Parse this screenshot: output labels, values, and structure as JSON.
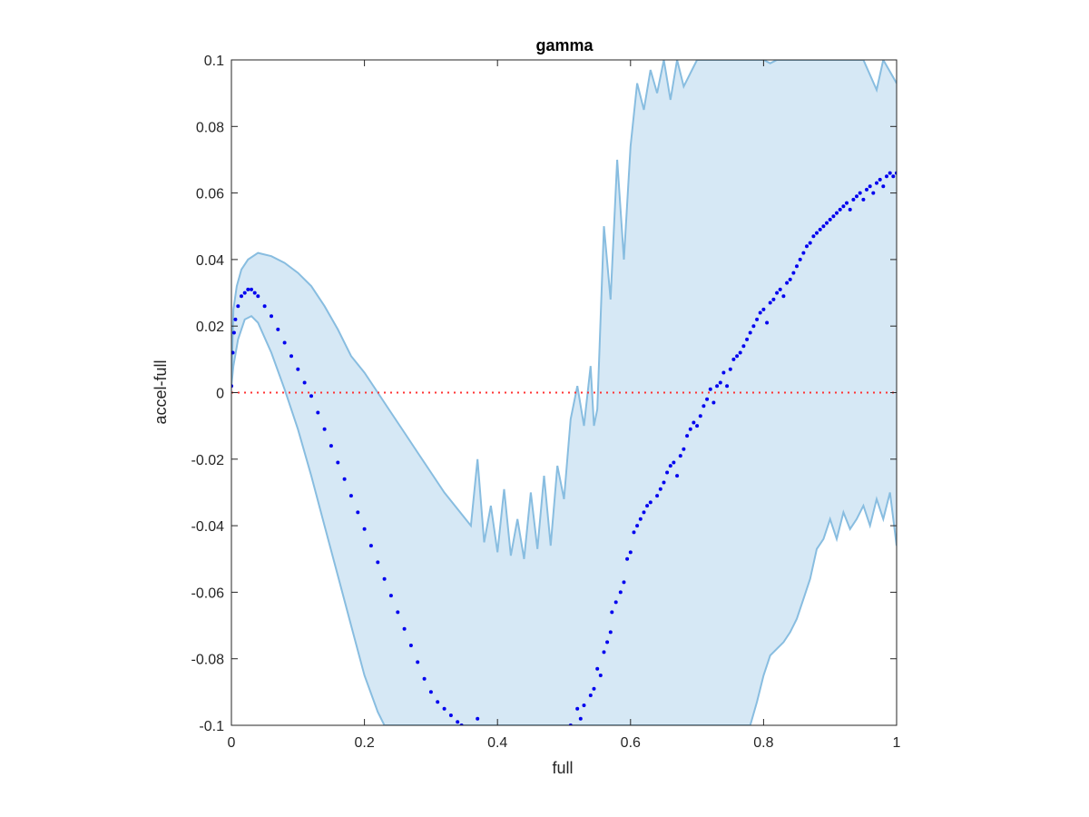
{
  "chart_data": {
    "type": "scatter",
    "title": "gamma",
    "xlabel": "full",
    "ylabel": "accel-full",
    "xlim": [
      0,
      1
    ],
    "ylim": [
      -0.1,
      0.1
    ],
    "xticks": [
      {
        "value": 0,
        "label": "0"
      },
      {
        "value": 0.2,
        "label": "0.2"
      },
      {
        "value": 0.4,
        "label": "0.4"
      },
      {
        "value": 0.6,
        "label": "0.6"
      },
      {
        "value": 0.8,
        "label": "0.8"
      },
      {
        "value": 1,
        "label": "1"
      }
    ],
    "yticks": [
      {
        "value": -0.1,
        "label": "-0.1"
      },
      {
        "value": -0.08,
        "label": "-0.08"
      },
      {
        "value": -0.06,
        "label": "-0.06"
      },
      {
        "value": -0.04,
        "label": "-0.04"
      },
      {
        "value": -0.02,
        "label": "-0.02"
      },
      {
        "value": 0,
        "label": "0"
      },
      {
        "value": 0.02,
        "label": "0.02"
      },
      {
        "value": 0.04,
        "label": "0.04"
      },
      {
        "value": 0.06,
        "label": "0.06"
      },
      {
        "value": 0.08,
        "label": "0.08"
      },
      {
        "value": 0.1,
        "label": "0.1"
      }
    ],
    "grid": false,
    "reference_line": {
      "y": 0,
      "style": "dotted",
      "color": "#ff3333"
    },
    "band": {
      "fill": "#d6e8f5",
      "edge": "#88bde0",
      "upper": [
        [
          0,
          0.002
        ],
        [
          0.003,
          0.025
        ],
        [
          0.008,
          0.032
        ],
        [
          0.015,
          0.037
        ],
        [
          0.025,
          0.04
        ],
        [
          0.04,
          0.042
        ],
        [
          0.06,
          0.041
        ],
        [
          0.08,
          0.039
        ],
        [
          0.1,
          0.036
        ],
        [
          0.12,
          0.032
        ],
        [
          0.14,
          0.026
        ],
        [
          0.16,
          0.019
        ],
        [
          0.18,
          0.011
        ],
        [
          0.2,
          0.006
        ],
        [
          0.22,
          0.0
        ],
        [
          0.24,
          -0.006
        ],
        [
          0.26,
          -0.012
        ],
        [
          0.28,
          -0.018
        ],
        [
          0.3,
          -0.024
        ],
        [
          0.32,
          -0.03
        ],
        [
          0.34,
          -0.035
        ],
        [
          0.36,
          -0.04
        ],
        [
          0.37,
          -0.02
        ],
        [
          0.38,
          -0.045
        ],
        [
          0.39,
          -0.034
        ],
        [
          0.4,
          -0.048
        ],
        [
          0.41,
          -0.029
        ],
        [
          0.42,
          -0.049
        ],
        [
          0.43,
          -0.038
        ],
        [
          0.44,
          -0.05
        ],
        [
          0.45,
          -0.03
        ],
        [
          0.46,
          -0.047
        ],
        [
          0.47,
          -0.025
        ],
        [
          0.48,
          -0.046
        ],
        [
          0.49,
          -0.022
        ],
        [
          0.5,
          -0.032
        ],
        [
          0.51,
          -0.008
        ],
        [
          0.52,
          0.002
        ],
        [
          0.53,
          -0.01
        ],
        [
          0.54,
          0.008
        ],
        [
          0.545,
          -0.01
        ],
        [
          0.55,
          -0.005
        ],
        [
          0.56,
          0.05
        ],
        [
          0.57,
          0.028
        ],
        [
          0.58,
          0.07
        ],
        [
          0.59,
          0.04
        ],
        [
          0.6,
          0.074
        ],
        [
          0.61,
          0.093
        ],
        [
          0.62,
          0.085
        ],
        [
          0.63,
          0.097
        ],
        [
          0.64,
          0.09
        ],
        [
          0.65,
          0.1
        ],
        [
          0.66,
          0.088
        ],
        [
          0.67,
          0.1
        ],
        [
          0.68,
          0.092
        ],
        [
          0.7,
          0.1
        ],
        [
          0.72,
          0.1
        ],
        [
          0.8,
          0.1
        ],
        [
          0.81,
          0.099
        ],
        [
          0.82,
          0.1
        ],
        [
          0.95,
          0.1
        ],
        [
          0.97,
          0.091
        ],
        [
          0.98,
          0.1
        ],
        [
          1.0,
          0.093
        ]
      ],
      "lower": [
        [
          0,
          0.002
        ],
        [
          0.003,
          0.008
        ],
        [
          0.01,
          0.016
        ],
        [
          0.02,
          0.022
        ],
        [
          0.03,
          0.023
        ],
        [
          0.04,
          0.021
        ],
        [
          0.06,
          0.012
        ],
        [
          0.08,
          0.001
        ],
        [
          0.1,
          -0.011
        ],
        [
          0.12,
          -0.025
        ],
        [
          0.14,
          -0.04
        ],
        [
          0.16,
          -0.055
        ],
        [
          0.18,
          -0.07
        ],
        [
          0.2,
          -0.085
        ],
        [
          0.22,
          -0.096
        ],
        [
          0.23,
          -0.1
        ],
        [
          0.78,
          -0.1
        ],
        [
          0.79,
          -0.093
        ],
        [
          0.8,
          -0.085
        ],
        [
          0.81,
          -0.079
        ],
        [
          0.82,
          -0.077
        ],
        [
          0.83,
          -0.075
        ],
        [
          0.84,
          -0.072
        ],
        [
          0.85,
          -0.068
        ],
        [
          0.86,
          -0.062
        ],
        [
          0.87,
          -0.056
        ],
        [
          0.88,
          -0.047
        ],
        [
          0.89,
          -0.044
        ],
        [
          0.9,
          -0.038
        ],
        [
          0.91,
          -0.044
        ],
        [
          0.92,
          -0.036
        ],
        [
          0.93,
          -0.041
        ],
        [
          0.94,
          -0.038
        ],
        [
          0.95,
          -0.034
        ],
        [
          0.96,
          -0.04
        ],
        [
          0.97,
          -0.032
        ],
        [
          0.98,
          -0.038
        ],
        [
          0.99,
          -0.03
        ],
        [
          1.0,
          -0.046
        ]
      ]
    },
    "series": [
      {
        "color": "#0000ee",
        "points": [
          [
            0.0,
            0.002
          ],
          [
            0.002,
            0.012
          ],
          [
            0.004,
            0.018
          ],
          [
            0.006,
            0.022
          ],
          [
            0.01,
            0.026
          ],
          [
            0.015,
            0.029
          ],
          [
            0.02,
            0.03
          ],
          [
            0.025,
            0.031
          ],
          [
            0.03,
            0.031
          ],
          [
            0.035,
            0.03
          ],
          [
            0.04,
            0.029
          ],
          [
            0.05,
            0.026
          ],
          [
            0.06,
            0.023
          ],
          [
            0.07,
            0.019
          ],
          [
            0.08,
            0.015
          ],
          [
            0.09,
            0.011
          ],
          [
            0.1,
            0.007
          ],
          [
            0.11,
            0.003
          ],
          [
            0.12,
            -0.001
          ],
          [
            0.13,
            -0.006
          ],
          [
            0.14,
            -0.011
          ],
          [
            0.15,
            -0.016
          ],
          [
            0.16,
            -0.021
          ],
          [
            0.17,
            -0.026
          ],
          [
            0.18,
            -0.031
          ],
          [
            0.19,
            -0.036
          ],
          [
            0.2,
            -0.041
          ],
          [
            0.21,
            -0.046
          ],
          [
            0.22,
            -0.051
          ],
          [
            0.23,
            -0.056
          ],
          [
            0.24,
            -0.061
          ],
          [
            0.25,
            -0.066
          ],
          [
            0.26,
            -0.071
          ],
          [
            0.27,
            -0.076
          ],
          [
            0.28,
            -0.081
          ],
          [
            0.29,
            -0.086
          ],
          [
            0.3,
            -0.09
          ],
          [
            0.31,
            -0.093
          ],
          [
            0.32,
            -0.095
          ],
          [
            0.33,
            -0.097
          ],
          [
            0.34,
            -0.099
          ],
          [
            0.346,
            -0.1
          ],
          [
            0.37,
            -0.098
          ],
          [
            0.51,
            -0.1
          ],
          [
            0.52,
            -0.095
          ],
          [
            0.525,
            -0.098
          ],
          [
            0.53,
            -0.094
          ],
          [
            0.54,
            -0.091
          ],
          [
            0.545,
            -0.089
          ],
          [
            0.55,
            -0.083
          ],
          [
            0.555,
            -0.085
          ],
          [
            0.56,
            -0.078
          ],
          [
            0.565,
            -0.075
          ],
          [
            0.57,
            -0.072
          ],
          [
            0.572,
            -0.066
          ],
          [
            0.578,
            -0.063
          ],
          [
            0.585,
            -0.06
          ],
          [
            0.59,
            -0.057
          ],
          [
            0.595,
            -0.05
          ],
          [
            0.6,
            -0.048
          ],
          [
            0.605,
            -0.042
          ],
          [
            0.61,
            -0.04
          ],
          [
            0.615,
            -0.038
          ],
          [
            0.62,
            -0.036
          ],
          [
            0.625,
            -0.034
          ],
          [
            0.63,
            -0.033
          ],
          [
            0.64,
            -0.031
          ],
          [
            0.645,
            -0.029
          ],
          [
            0.65,
            -0.027
          ],
          [
            0.655,
            -0.024
          ],
          [
            0.66,
            -0.022
          ],
          [
            0.665,
            -0.021
          ],
          [
            0.67,
            -0.025
          ],
          [
            0.675,
            -0.019
          ],
          [
            0.68,
            -0.017
          ],
          [
            0.685,
            -0.013
          ],
          [
            0.69,
            -0.011
          ],
          [
            0.695,
            -0.009
          ],
          [
            0.7,
            -0.01
          ],
          [
            0.705,
            -0.007
          ],
          [
            0.71,
            -0.004
          ],
          [
            0.715,
            -0.002
          ],
          [
            0.72,
            0.001
          ],
          [
            0.725,
            -0.003
          ],
          [
            0.73,
            0.002
          ],
          [
            0.735,
            0.003
          ],
          [
            0.74,
            0.006
          ],
          [
            0.745,
            0.002
          ],
          [
            0.75,
            0.007
          ],
          [
            0.755,
            0.01
          ],
          [
            0.76,
            0.011
          ],
          [
            0.765,
            0.012
          ],
          [
            0.77,
            0.014
          ],
          [
            0.775,
            0.016
          ],
          [
            0.78,
            0.018
          ],
          [
            0.785,
            0.02
          ],
          [
            0.79,
            0.022
          ],
          [
            0.795,
            0.024
          ],
          [
            0.8,
            0.025
          ],
          [
            0.805,
            0.021
          ],
          [
            0.81,
            0.027
          ],
          [
            0.815,
            0.028
          ],
          [
            0.82,
            0.03
          ],
          [
            0.825,
            0.031
          ],
          [
            0.83,
            0.029
          ],
          [
            0.835,
            0.033
          ],
          [
            0.84,
            0.034
          ],
          [
            0.845,
            0.036
          ],
          [
            0.85,
            0.038
          ],
          [
            0.855,
            0.04
          ],
          [
            0.86,
            0.042
          ],
          [
            0.865,
            0.044
          ],
          [
            0.87,
            0.045
          ],
          [
            0.875,
            0.047
          ],
          [
            0.88,
            0.048
          ],
          [
            0.885,
            0.049
          ],
          [
            0.89,
            0.05
          ],
          [
            0.895,
            0.051
          ],
          [
            0.9,
            0.052
          ],
          [
            0.905,
            0.053
          ],
          [
            0.91,
            0.054
          ],
          [
            0.915,
            0.055
          ],
          [
            0.92,
            0.056
          ],
          [
            0.925,
            0.057
          ],
          [
            0.93,
            0.055
          ],
          [
            0.935,
            0.058
          ],
          [
            0.94,
            0.059
          ],
          [
            0.945,
            0.06
          ],
          [
            0.95,
            0.058
          ],
          [
            0.955,
            0.061
          ],
          [
            0.96,
            0.062
          ],
          [
            0.965,
            0.06
          ],
          [
            0.97,
            0.063
          ],
          [
            0.975,
            0.064
          ],
          [
            0.98,
            0.062
          ],
          [
            0.985,
            0.065
          ],
          [
            0.99,
            0.066
          ],
          [
            0.995,
            0.065
          ],
          [
            1.0,
            0.066
          ]
        ]
      }
    ]
  }
}
